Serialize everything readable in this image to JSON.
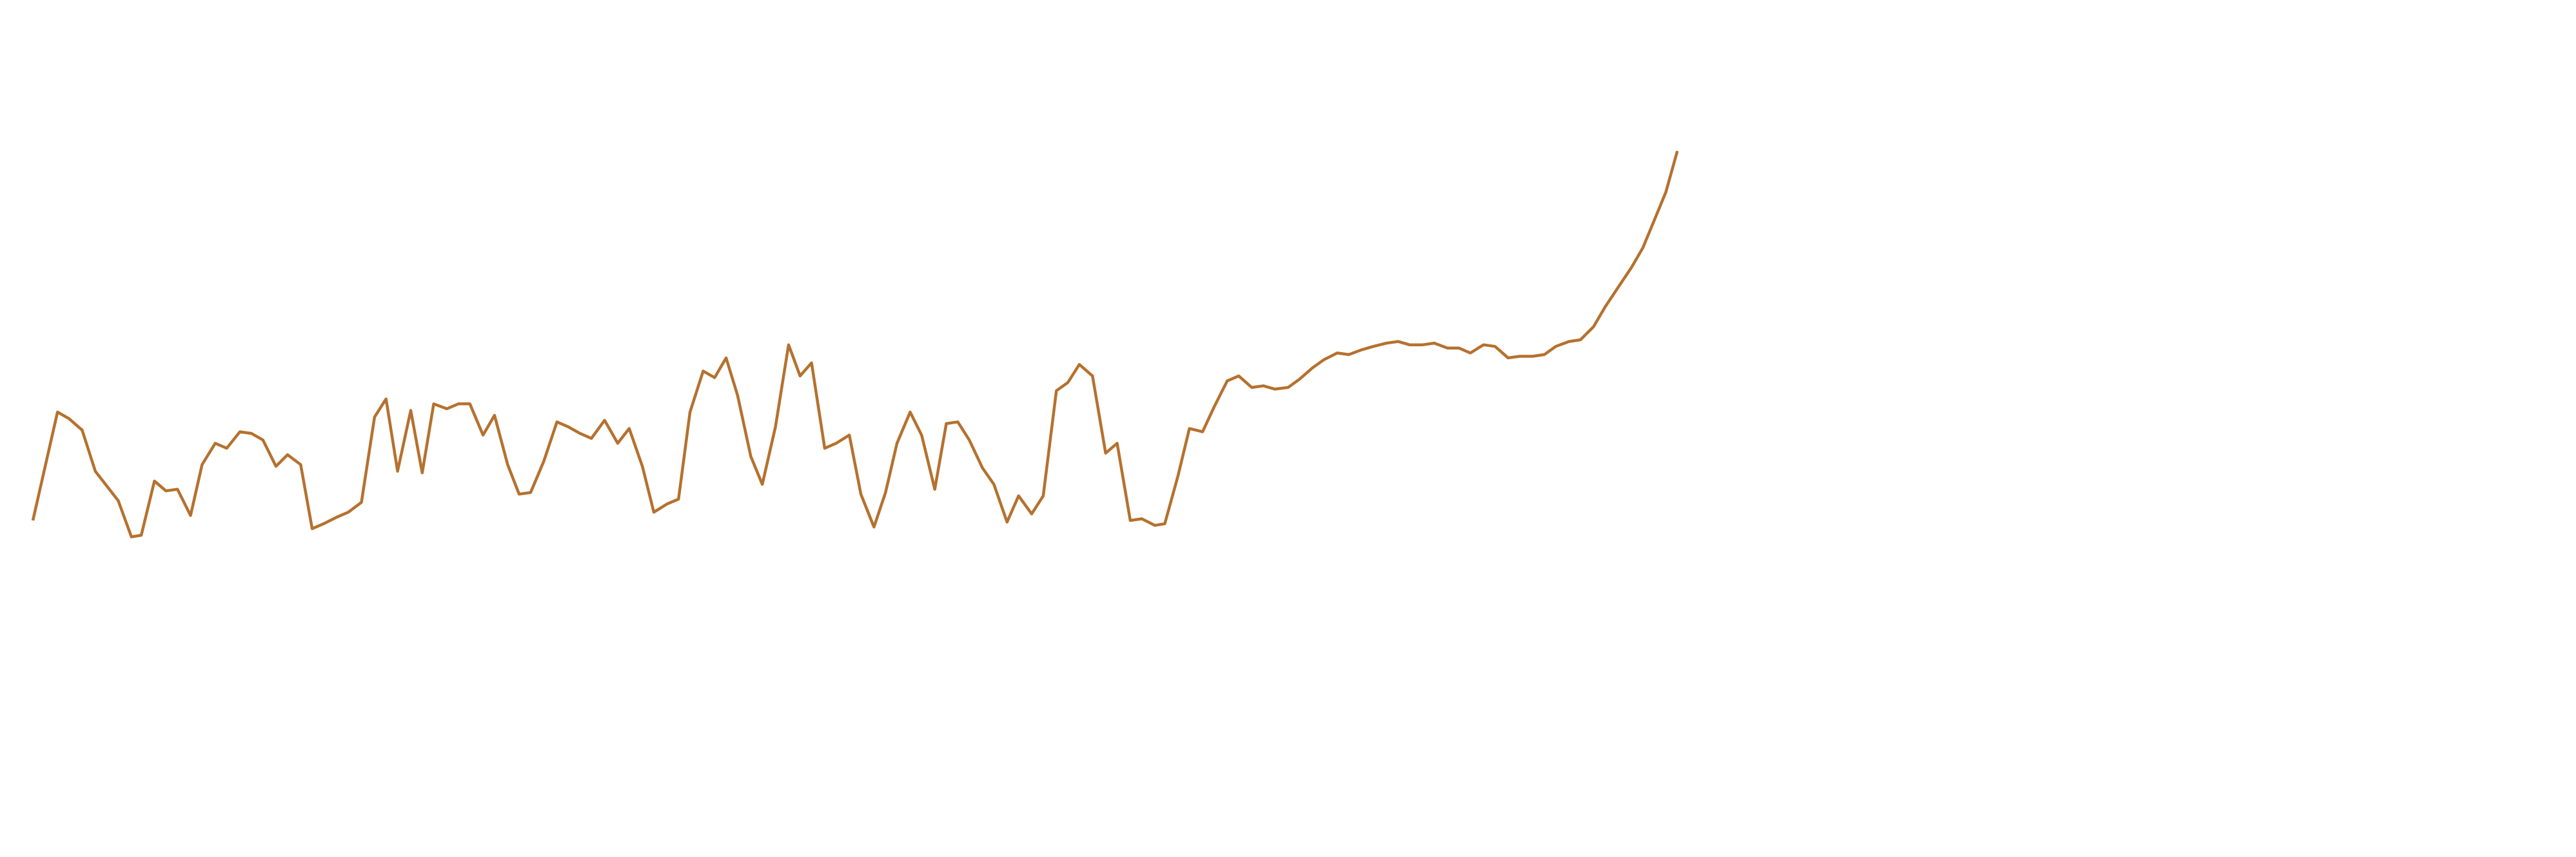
{
  "chart_data": {
    "type": "line",
    "x": [
      20,
      35,
      42,
      50,
      58,
      65,
      72,
      80,
      86,
      94,
      101,
      108,
      116,
      123,
      131,
      138,
      146,
      153,
      160,
      168,
      175,
      183,
      190,
      197,
      205,
      212,
      220,
      228,
      235,
      242,
      250,
      257,
      264,
      272,
      279,
      286,
      294,
      301,
      309,
      316,
      323,
      331,
      339,
      346,
      353,
      360,
      368,
      376,
      383,
      391,
      398,
      406,
      413,
      420,
      428,
      435,
      442,
      449,
      457,
      464,
      472,
      480,
      487,
      494,
      502,
      509,
      517,
      524,
      532,
      539,
      546,
      554,
      561,
      569,
      576,
      583,
      590,
      598,
      605,
      613,
      620,
      628,
      635,
      643,
      650,
      657,
      665,
      673,
      680,
      688,
      695,
      703,
      709,
      717,
      724,
      732,
      739,
      747,
      754,
      762,
      769,
      776,
      784,
      791,
      799,
      806,
      814,
      821,
      829,
      836,
      844,
      851,
      858,
      866,
      873,
      881,
      888,
      895,
      903,
      910,
      918,
      925,
      933,
      940,
      947,
      955,
      962,
      970,
      977,
      985,
      993,
      1000,
      1007,
      1014,
      1021
    ],
    "series": [
      {
        "color": "#b5712e",
        "values": [
          205,
          271,
          267,
          260,
          235,
          226,
          217,
          195,
          196,
          229,
          223,
          224,
          208,
          239,
          252,
          249,
          259,
          258,
          254,
          238,
          245,
          239,
          200,
          203,
          207,
          210,
          216,
          268,
          279,
          235,
          272,
          234,
          276,
          273,
          276,
          276,
          257,
          269,
          239,
          221,
          222,
          241,
          265,
          262,
          258,
          255,
          266,
          252,
          261,
          238,
          210,
          215,
          218,
          271,
          296,
          292,
          304,
          281,
          244,
          227,
          262,
          312,
          293,
          301,
          249,
          252,
          257,
          221,
          201,
          222,
          252,
          271,
          257,
          224,
          264,
          265,
          254,
          237,
          227,
          204,
          220,
          209,
          220,
          284,
          289,
          300,
          293,
          246,
          252,
          205,
          206,
          202,
          203,
          232,
          261,
          259,
          274,
          290,
          293,
          286,
          287,
          285,
          286,
          291,
          298,
          303,
          307,
          306,
          309,
          311,
          313,
          314,
          312,
          312,
          313,
          310,
          310,
          307,
          312,
          311,
          304,
          305,
          305,
          306,
          311,
          314,
          315,
          323,
          335,
          347,
          359,
          371,
          388,
          405,
          430
        ]
      }
    ],
    "xlim": [
      0,
      1568
    ],
    "ylim": [
      0,
      522
    ]
  }
}
